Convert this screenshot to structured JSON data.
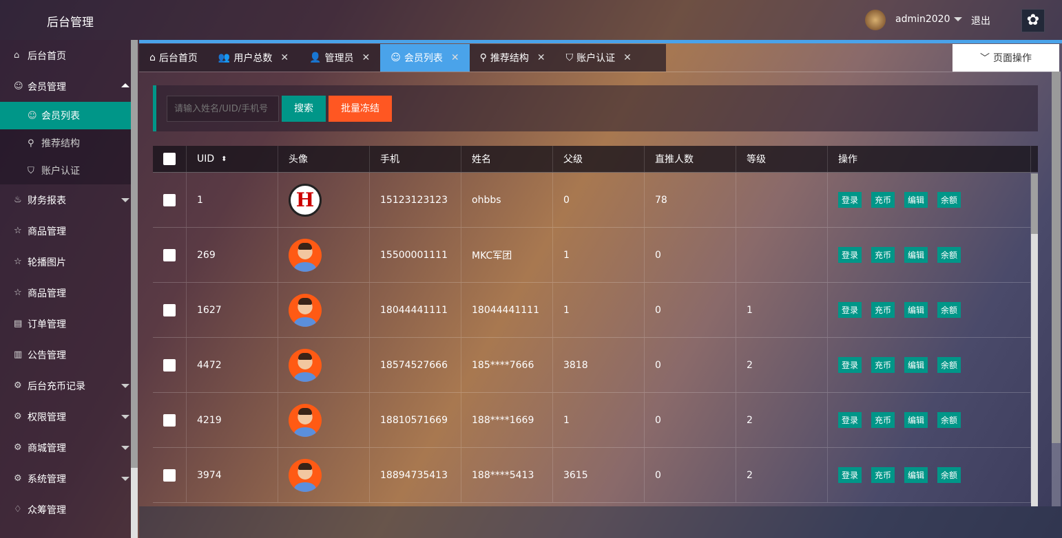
{
  "header": {
    "title": "后台管理",
    "username": "admin2020",
    "logout": "退出"
  },
  "sidebar": {
    "items": [
      {
        "label": "后台首页",
        "icon": "home-icon"
      },
      {
        "label": "会员管理",
        "icon": "user-icon",
        "expanded": true
      },
      {
        "label": "财务报表",
        "icon": "chart-icon"
      },
      {
        "label": "商品管理",
        "icon": "star-icon"
      },
      {
        "label": "轮播图片",
        "icon": "star-icon"
      },
      {
        "label": "商品管理",
        "icon": "star-icon"
      },
      {
        "label": "订单管理",
        "icon": "clipboard-icon"
      },
      {
        "label": "公告管理",
        "icon": "book-icon"
      },
      {
        "label": "后台充币记录",
        "icon": "gear-icon"
      },
      {
        "label": "权限管理",
        "icon": "gear-icon"
      },
      {
        "label": "商城管理",
        "icon": "gear-icon"
      },
      {
        "label": "系统管理",
        "icon": "gear-icon"
      },
      {
        "label": "众筹管理",
        "icon": "drop-icon"
      }
    ],
    "sub_items": [
      {
        "label": "会员列表",
        "active": true
      },
      {
        "label": "推荐结构"
      },
      {
        "label": "账户认证"
      }
    ]
  },
  "tabs": [
    {
      "label": "后台首页",
      "closable": false
    },
    {
      "label": "用户总数",
      "closable": true
    },
    {
      "label": "管理员",
      "closable": true
    },
    {
      "label": "会员列表",
      "closable": true,
      "active": true
    },
    {
      "label": "推荐结构",
      "closable": true
    },
    {
      "label": "账户认证",
      "closable": true
    }
  ],
  "page_ops": "页面操作",
  "search": {
    "placeholder": "请输入姓名/UID/手机号",
    "search_label": "搜索",
    "freeze_label": "批量冻结"
  },
  "colors": {
    "accent": "#009688",
    "active_tab": "#4aa3ea",
    "danger": "#ff5722"
  },
  "table": {
    "headers": [
      "UID",
      "头像",
      "手机",
      "姓名",
      "父级",
      "直推人数",
      "等级",
      "操作"
    ],
    "actions": [
      "登录",
      "充币",
      "编辑",
      "余额"
    ],
    "rows": [
      {
        "uid": "1",
        "phone": "15123123123",
        "name": "ohbbs",
        "parent": "0",
        "direct": "78",
        "level": ""
      },
      {
        "uid": "269",
        "phone": "15500001111",
        "name": "MKC军团",
        "parent": "1",
        "direct": "0",
        "level": ""
      },
      {
        "uid": "1627",
        "phone": "18044441111",
        "name": "18044441111",
        "parent": "1",
        "direct": "0",
        "level": "1"
      },
      {
        "uid": "4472",
        "phone": "18574527666",
        "name": "185****7666",
        "parent": "3818",
        "direct": "0",
        "level": "2"
      },
      {
        "uid": "4219",
        "phone": "18810571669",
        "name": "188****1669",
        "parent": "1",
        "direct": "0",
        "level": "2"
      },
      {
        "uid": "3974",
        "phone": "18894735413",
        "name": "188****5413",
        "parent": "3615",
        "direct": "0",
        "level": "2"
      }
    ]
  }
}
